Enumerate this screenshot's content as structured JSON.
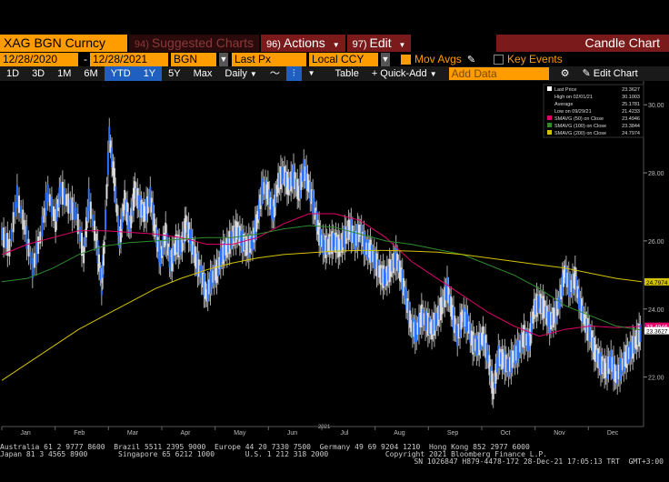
{
  "toolbar1": {
    "ticker": "XAG BGN Curncy",
    "suggested": {
      "num": "94)",
      "label": "Suggested Charts"
    },
    "actions": {
      "num": "96)",
      "label": "Actions"
    },
    "edit": {
      "num": "97)",
      "label": "Edit"
    },
    "title": "Candle Chart"
  },
  "toolbar2": {
    "start_date": "12/28/2020",
    "end_date": "12/28/2021",
    "source": "BGN",
    "field": "Last Px",
    "currency": "Local CCY",
    "mov_avgs": "Mov Avgs",
    "key_events": "Key Events"
  },
  "toolbar3": {
    "ranges": [
      "1D",
      "3D",
      "1M",
      "6M",
      "YTD",
      "1Y",
      "5Y",
      "Max"
    ],
    "selected_range": "YTD",
    "period": "Daily",
    "table": "Table",
    "quick_add": "Quick-Add",
    "add_data_placeholder": "Add Data",
    "edit_chart": "Edit Chart"
  },
  "legend": {
    "rows": [
      {
        "label": "Last Price",
        "value": "23.3627",
        "color": "#ffffff"
      },
      {
        "label": "High on 02/01/21",
        "value": "30.1003",
        "color": ""
      },
      {
        "label": "Average",
        "value": "25.1781",
        "color": ""
      },
      {
        "label": "Low on 09/29/21",
        "value": "21.4233",
        "color": ""
      },
      {
        "label": "SMAVG (50)  on Close",
        "value": "23.4946",
        "color": "#e0006a"
      },
      {
        "label": "SMAVG (100)  on Close",
        "value": "23.3844",
        "color": "#2e8b2e"
      },
      {
        "label": "SMAVG (200)  on Close",
        "value": "24.7974",
        "color": "#d4c200"
      }
    ]
  },
  "chart_data": {
    "type": "line",
    "y_ticks": [
      "30.00",
      "28.00",
      "26.00",
      "24.00",
      "22.00"
    ],
    "ylim": [
      20.6,
      30.7
    ],
    "x_ticks": [
      "Jan",
      "Feb",
      "Mar",
      "Apr",
      "May",
      "Jun",
      "Jul",
      "Aug",
      "Sep",
      "Oct",
      "Nov",
      "Dec"
    ],
    "x_year_label": "2021",
    "price_tags": [
      {
        "value": 24.7974,
        "label": "24.7974",
        "color": "#d4c200",
        "text_color": "#000000"
      },
      {
        "value": 23.4946,
        "label": "23.4946",
        "color": "#e0006a",
        "text_color": "#ffffff"
      },
      {
        "value": 23.3627,
        "label": "23.3627",
        "color": "#ffffff",
        "text_color": "#000000"
      }
    ],
    "series": [
      {
        "name": "Last Price",
        "color": "#2a72ff",
        "points": [
          [
            0,
            26.2
          ],
          [
            0.3,
            25.8
          ],
          [
            0.6,
            27.3
          ],
          [
            0.9,
            26.4
          ],
          [
            1.2,
            25.2
          ],
          [
            1.5,
            26.1
          ],
          [
            1.8,
            27.4
          ],
          [
            2.1,
            26.6
          ],
          [
            2.3,
            27.5
          ],
          [
            2.6,
            27.1
          ],
          [
            2.9,
            26.8
          ],
          [
            3.2,
            25.6
          ],
          [
            3.4,
            27.2
          ],
          [
            3.7,
            26.0
          ],
          [
            3.9,
            24.7
          ],
          [
            4.0,
            25.8
          ],
          [
            4.2,
            29.1
          ],
          [
            4.4,
            27.8
          ],
          [
            4.6,
            26.0
          ],
          [
            4.8,
            27.2
          ],
          [
            5.0,
            26.4
          ],
          [
            5.2,
            27.5
          ],
          [
            5.4,
            27.0
          ],
          [
            5.6,
            26.8
          ],
          [
            5.8,
            27.3
          ],
          [
            6.0,
            26.3
          ],
          [
            6.2,
            25.5
          ],
          [
            6.4,
            26.2
          ],
          [
            6.6,
            25.3
          ],
          [
            6.8,
            25.9
          ],
          [
            7.0,
            25.8
          ],
          [
            7.2,
            26.5
          ],
          [
            7.4,
            26.0
          ],
          [
            7.6,
            25.4
          ],
          [
            7.8,
            25.0
          ],
          [
            8.0,
            24.4
          ],
          [
            8.2,
            24.9
          ],
          [
            8.4,
            25.1
          ],
          [
            8.6,
            25.6
          ],
          [
            8.8,
            25.8
          ],
          [
            9.0,
            26.1
          ],
          [
            9.2,
            26.3
          ],
          [
            9.4,
            26.0
          ],
          [
            9.6,
            25.8
          ],
          [
            9.8,
            26.0
          ],
          [
            10.0,
            26.7
          ],
          [
            10.2,
            27.6
          ],
          [
            10.4,
            27.4
          ],
          [
            10.6,
            26.8
          ],
          [
            10.8,
            27.7
          ],
          [
            11.0,
            28.0
          ],
          [
            11.2,
            27.6
          ],
          [
            11.4,
            27.9
          ],
          [
            11.6,
            27.4
          ],
          [
            11.8,
            28.1
          ],
          [
            12.0,
            27.6
          ],
          [
            12.2,
            27.0
          ],
          [
            12.4,
            26.2
          ],
          [
            12.6,
            25.8
          ],
          [
            12.8,
            25.9
          ],
          [
            13.0,
            26.0
          ],
          [
            13.2,
            25.8
          ],
          [
            13.4,
            26.1
          ],
          [
            13.6,
            26.4
          ],
          [
            13.8,
            26.0
          ],
          [
            14.0,
            26.3
          ],
          [
            14.2,
            25.8
          ],
          [
            14.4,
            25.7
          ],
          [
            14.6,
            25.4
          ],
          [
            14.8,
            25.0
          ],
          [
            15.0,
            24.9
          ],
          [
            15.2,
            25.2
          ],
          [
            15.4,
            25.5
          ],
          [
            15.6,
            25.0
          ],
          [
            15.8,
            24.3
          ],
          [
            16.0,
            23.5
          ],
          [
            16.2,
            23.3
          ],
          [
            16.4,
            23.8
          ],
          [
            16.6,
            23.6
          ],
          [
            16.8,
            23.4
          ],
          [
            17.0,
            23.7
          ],
          [
            17.2,
            24.1
          ],
          [
            17.4,
            24.6
          ],
          [
            17.6,
            23.9
          ],
          [
            17.8,
            23.2
          ],
          [
            18.0,
            23.8
          ],
          [
            18.2,
            23.6
          ],
          [
            18.4,
            23.0
          ],
          [
            18.6,
            22.9
          ],
          [
            18.8,
            23.2
          ],
          [
            19.0,
            22.6
          ],
          [
            19.2,
            21.6
          ],
          [
            19.4,
            22.6
          ],
          [
            19.6,
            22.5
          ],
          [
            19.8,
            22.3
          ],
          [
            20.0,
            22.6
          ],
          [
            20.2,
            22.8
          ],
          [
            20.4,
            23.2
          ],
          [
            20.6,
            23.0
          ],
          [
            20.8,
            24.0
          ],
          [
            21.0,
            24.2
          ],
          [
            21.2,
            24.0
          ],
          [
            21.4,
            23.6
          ],
          [
            21.6,
            23.8
          ],
          [
            21.8,
            24.3
          ],
          [
            22.0,
            25.1
          ],
          [
            22.2,
            24.6
          ],
          [
            22.4,
            24.9
          ],
          [
            22.6,
            24.1
          ],
          [
            22.8,
            23.6
          ],
          [
            23.0,
            23.2
          ],
          [
            23.2,
            22.7
          ],
          [
            23.4,
            22.4
          ],
          [
            23.6,
            22.2
          ],
          [
            23.8,
            22.5
          ],
          [
            24.0,
            22.0
          ],
          [
            24.2,
            22.3
          ],
          [
            24.4,
            22.6
          ],
          [
            24.6,
            22.8
          ],
          [
            24.8,
            23.1
          ],
          [
            25.0,
            23.36
          ]
        ]
      },
      {
        "name": "SMAVG (50)",
        "color": "#e0006a",
        "points": [
          [
            0,
            25.6
          ],
          [
            1,
            25.9
          ],
          [
            2,
            26.1
          ],
          [
            3,
            26.3
          ],
          [
            4,
            26.3
          ],
          [
            5,
            26.25
          ],
          [
            6,
            26.2
          ],
          [
            7,
            26.1
          ],
          [
            8,
            25.9
          ],
          [
            9,
            25.9
          ],
          [
            10,
            26.1
          ],
          [
            11,
            26.5
          ],
          [
            12,
            26.8
          ],
          [
            13,
            26.8
          ],
          [
            14,
            26.6
          ],
          [
            15,
            26.1
          ],
          [
            16,
            25.4
          ],
          [
            17,
            24.9
          ],
          [
            18,
            24.4
          ],
          [
            19,
            23.9
          ],
          [
            20,
            23.5
          ],
          [
            21,
            23.2
          ],
          [
            22,
            23.4
          ],
          [
            23,
            23.5
          ],
          [
            24,
            23.45
          ],
          [
            25,
            23.49
          ]
        ]
      },
      {
        "name": "SMAVG (100)",
        "color": "#2e8b2e",
        "points": [
          [
            0,
            24.8
          ],
          [
            1,
            24.9
          ],
          [
            2,
            25.2
          ],
          [
            3,
            25.6
          ],
          [
            4,
            25.85
          ],
          [
            5,
            25.95
          ],
          [
            6,
            26.0
          ],
          [
            7,
            26.05
          ],
          [
            8,
            26.1
          ],
          [
            9,
            26.1
          ],
          [
            10,
            26.2
          ],
          [
            11,
            26.35
          ],
          [
            12,
            26.45
          ],
          [
            13,
            26.4
          ],
          [
            14,
            26.2
          ],
          [
            15,
            26.0
          ],
          [
            16,
            25.9
          ],
          [
            17,
            25.75
          ],
          [
            18,
            25.6
          ],
          [
            19,
            25.3
          ],
          [
            20,
            25.0
          ],
          [
            21,
            24.6
          ],
          [
            22,
            24.1
          ],
          [
            23,
            23.8
          ],
          [
            24,
            23.5
          ],
          [
            25,
            23.38
          ]
        ]
      },
      {
        "name": "SMAVG (200)",
        "color": "#d4c200",
        "points": [
          [
            0,
            21.9
          ],
          [
            1,
            22.4
          ],
          [
            2,
            22.9
          ],
          [
            3,
            23.4
          ],
          [
            4,
            23.8
          ],
          [
            5,
            24.2
          ],
          [
            6,
            24.6
          ],
          [
            7,
            24.9
          ],
          [
            8,
            25.15
          ],
          [
            9,
            25.35
          ],
          [
            10,
            25.5
          ],
          [
            11,
            25.6
          ],
          [
            12,
            25.65
          ],
          [
            13,
            25.7
          ],
          [
            14,
            25.72
          ],
          [
            15,
            25.72
          ],
          [
            16,
            25.7
          ],
          [
            17,
            25.67
          ],
          [
            18,
            25.6
          ],
          [
            19,
            25.5
          ],
          [
            20,
            25.4
          ],
          [
            21,
            25.3
          ],
          [
            22,
            25.2
          ],
          [
            23,
            25.05
          ],
          [
            24,
            24.9
          ],
          [
            25,
            24.8
          ]
        ]
      }
    ]
  },
  "footer": {
    "line1": "Australia 61 2 9777 8600  Brazil 5511 2395 9000  Europe 44 20 7330 7500  Germany 49 69 9204 1210  Hong Kong 852 2977 6000",
    "line2": "Japan 81 3 4565 8900       Singapore 65 6212 1000       U.S. 1 212 318 2000             Copyright 2021 Bloomberg Finance L.P.",
    "line3": "SN 1026847 H879-4478-172 28-Dec-21 17:05:13 TRT  GMT+3:00"
  }
}
